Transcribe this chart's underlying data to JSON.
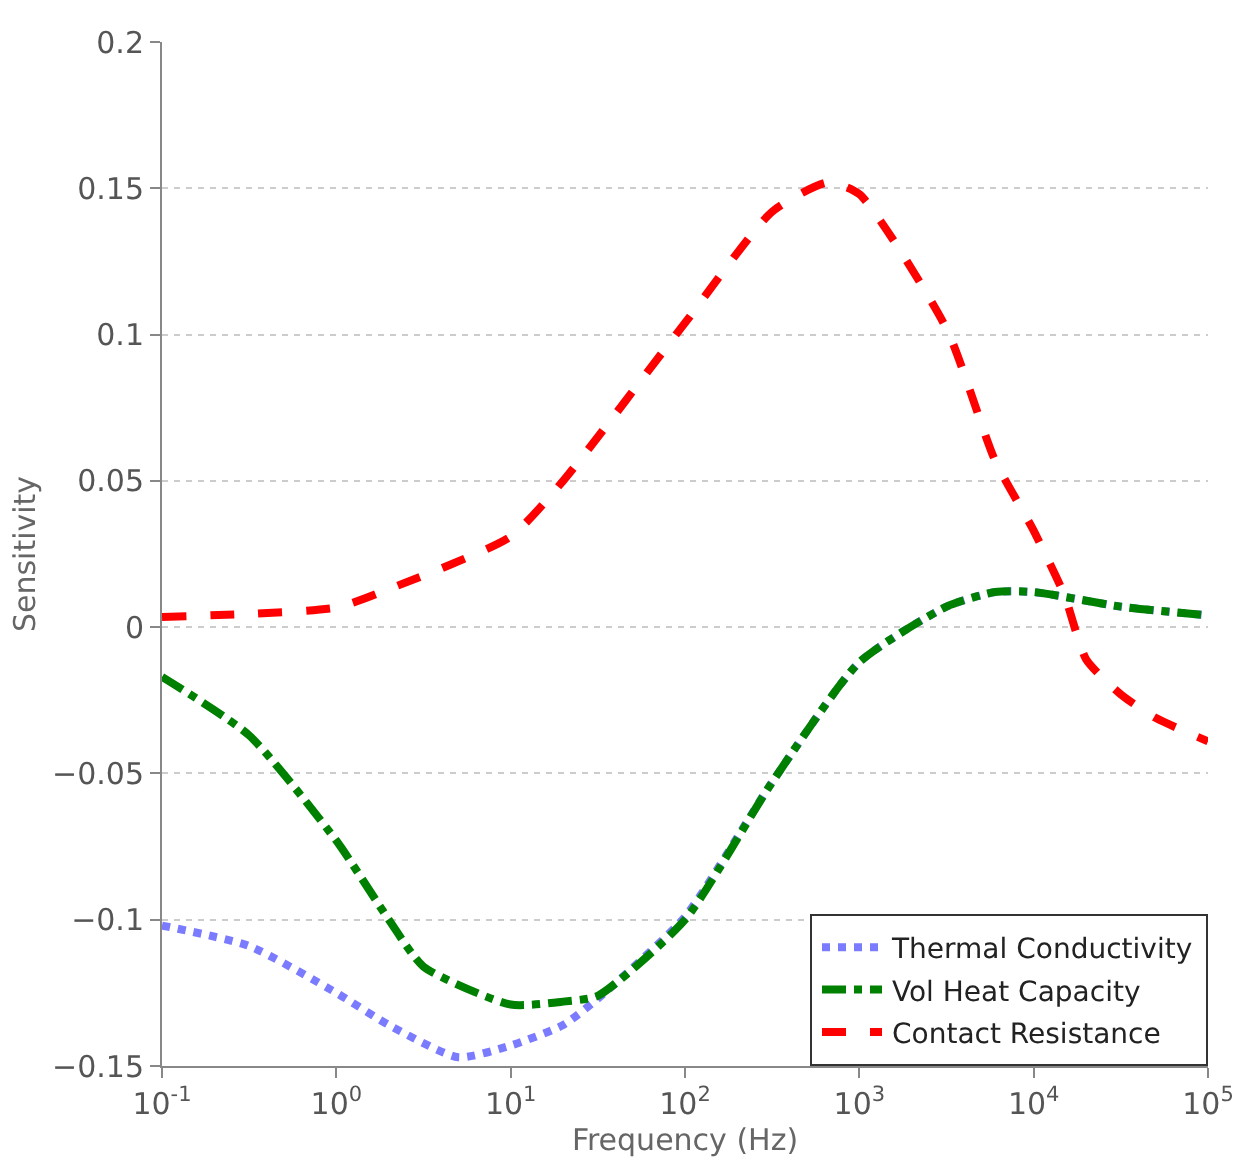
{
  "chart_data": {
    "type": "line",
    "xlabel": "Frequency (Hz)",
    "ylabel": "Sensitivity",
    "log": "x",
    "xlim": [
      0.1,
      100000
    ],
    "xticks": [
      {
        "value": 0.1,
        "label": "10$^{-1}$"
      },
      {
        "value": 1,
        "label": "10$^{0}$"
      },
      {
        "value": 10,
        "label": "10$^{1}$"
      },
      {
        "value": 100,
        "label": "10$^{2}$"
      },
      {
        "value": 1000,
        "label": "10$^{3}$"
      },
      {
        "value": 10000,
        "label": "10$^{4}$"
      },
      {
        "value": 100000,
        "label": "10$^{5}$"
      }
    ],
    "ylim": [
      -0.15,
      0.2
    ],
    "yticks": [
      {
        "value": -0.15,
        "label": "−0.15"
      },
      {
        "value": -0.1,
        "label": "−0.1"
      },
      {
        "value": -0.05,
        "label": "−0.05"
      },
      0,
      0.05,
      0.1,
      0.15,
      0.2
    ],
    "grid": "y",
    "legend": "bottom right",
    "marker": "none",
    "series": [
      {
        "name": "Thermal Conductivity",
        "color": "#7b7bff",
        "line_style": "dotted",
        "x": [
          0.1,
          0.316,
          1,
          2,
          5,
          10,
          20,
          31.6,
          100,
          316,
          1000,
          3162,
          6000,
          10000,
          31600,
          100000
        ],
        "values": [
          -0.102,
          -0.109,
          -0.125,
          -0.136,
          -0.147,
          -0.143,
          -0.136,
          -0.127,
          -0.099,
          -0.053,
          -0.012,
          0.007,
          0.012,
          0.012,
          0.007,
          0.004
        ]
      },
      {
        "name": "Vol Heat Capacity",
        "color": "#008000",
        "line_style": "dashdot",
        "x": [
          0.1,
          0.316,
          1,
          2,
          3.16,
          10,
          20,
          31.6,
          100,
          316,
          1000,
          3162,
          6000,
          10000,
          31600,
          100000
        ],
        "values": [
          -0.017,
          -0.037,
          -0.073,
          -0.1,
          -0.116,
          -0.129,
          -0.128,
          -0.126,
          -0.1,
          -0.053,
          -0.012,
          0.007,
          0.012,
          0.012,
          0.007,
          0.004
        ]
      },
      {
        "name": "Contact Resistance",
        "color": "#ff0000",
        "line_style": "dashed",
        "x": [
          0.1,
          1,
          2,
          10,
          20,
          100,
          316,
          660,
          1000,
          3162,
          6000,
          10000,
          15000,
          20000,
          31600,
          50000,
          100000
        ],
        "values": [
          0.0035,
          0.0067,
          0.013,
          0.031,
          0.05,
          0.104,
          0.142,
          0.152,
          0.148,
          0.102,
          0.057,
          0.033,
          0.011,
          -0.011,
          -0.023,
          -0.031,
          -0.039
        ]
      }
    ]
  }
}
